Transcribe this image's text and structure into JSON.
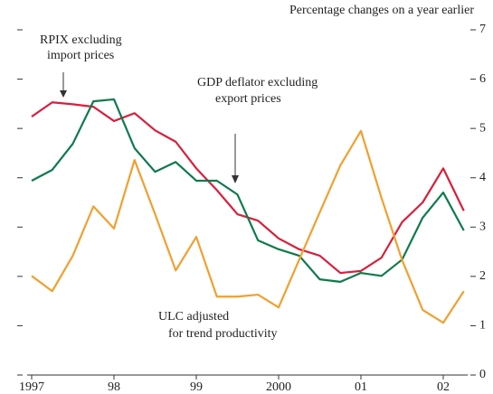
{
  "chart_data": {
    "type": "line",
    "subtitle": "Percentage changes on a year earlier",
    "x": [
      1997,
      1997.25,
      1997.5,
      1997.75,
      1998,
      1998.25,
      1998.5,
      1998.75,
      1999,
      1999.25,
      1999.5,
      1999.75,
      2000,
      2000.25,
      2000.5,
      2000.75,
      2001,
      2001.25,
      2001.5,
      2001.75,
      2002,
      2002.25
    ],
    "series": [
      {
        "name": "RPIX excluding import prices",
        "color": "#d81f3c",
        "values": [
          5.24,
          5.53,
          5.49,
          5.44,
          5.15,
          5.31,
          4.96,
          4.73,
          4.19,
          3.75,
          3.26,
          3.13,
          2.77,
          2.55,
          2.42,
          2.07,
          2.11,
          2.38,
          3.1,
          3.5,
          4.19,
          3.33
        ]
      },
      {
        "name": "GDP deflator excluding export prices",
        "color": "#0f7a4c",
        "values": [
          3.94,
          4.16,
          4.69,
          5.55,
          5.59,
          4.6,
          4.12,
          4.32,
          3.94,
          3.94,
          3.66,
          2.73,
          2.55,
          2.42,
          1.94,
          1.89,
          2.07,
          2.01,
          2.34,
          3.19,
          3.7,
          2.93
        ]
      },
      {
        "name": "ULC adjusted for trend productivity",
        "color": "#f0a030",
        "values": [
          2.01,
          1.7,
          2.42,
          3.42,
          2.97,
          4.36,
          3.26,
          2.12,
          2.8,
          1.59,
          1.59,
          1.63,
          1.37,
          2.34,
          3.3,
          4.25,
          4.95,
          3.59,
          2.33,
          1.32,
          1.06,
          1.7
        ]
      }
    ],
    "annotations": [
      [
        "RPIX excluding",
        "import prices"
      ],
      [
        "GDP deflator excluding",
        "export prices"
      ],
      [
        "ULC adjusted",
        "for trend productivity"
      ]
    ],
    "xlim": [
      1997,
      2002.3
    ],
    "xticks": [
      {
        "value": 1997,
        "label": "1997"
      },
      {
        "value": 1998,
        "label": "98"
      },
      {
        "value": 1999,
        "label": "99"
      },
      {
        "value": 2000,
        "label": "2000"
      },
      {
        "value": 2001,
        "label": "01"
      },
      {
        "value": 2002,
        "label": "02"
      }
    ],
    "ylim": [
      0,
      7
    ],
    "yticks": [
      0,
      1,
      2,
      3,
      4,
      5,
      6,
      7
    ]
  }
}
